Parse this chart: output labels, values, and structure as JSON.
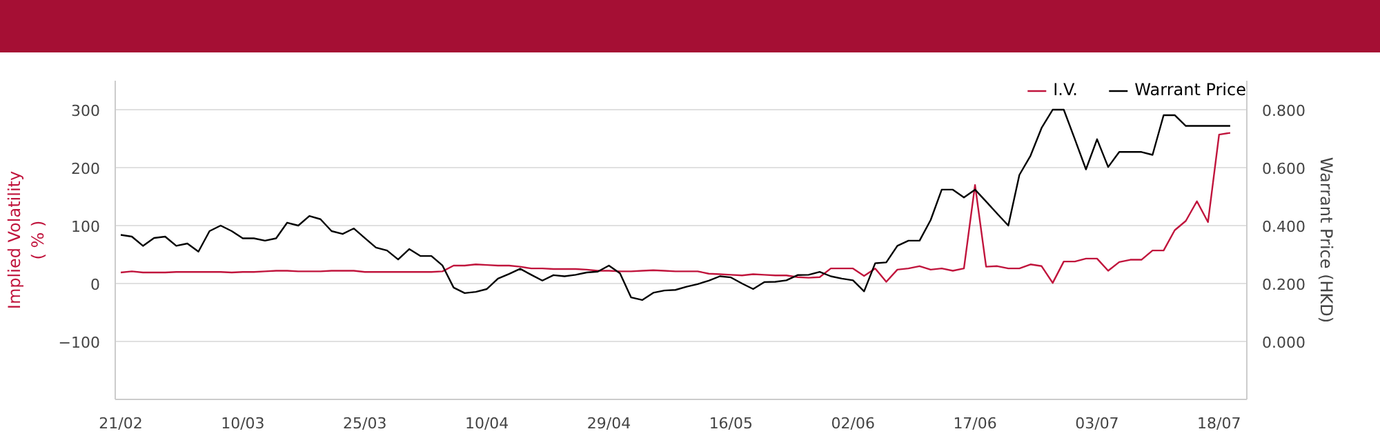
{
  "chart_data": {
    "type": "line",
    "categories": [
      "21/02",
      null,
      null,
      null,
      null,
      null,
      null,
      null,
      null,
      null,
      null,
      "10/03",
      null,
      null,
      null,
      null,
      null,
      null,
      null,
      null,
      null,
      null,
      "25/03",
      null,
      null,
      null,
      null,
      null,
      null,
      null,
      null,
      null,
      null,
      "10/04",
      null,
      null,
      null,
      null,
      null,
      null,
      null,
      null,
      null,
      null,
      "29/04",
      null,
      null,
      null,
      null,
      null,
      null,
      null,
      null,
      null,
      null,
      "16/05",
      null,
      null,
      null,
      null,
      null,
      null,
      null,
      null,
      null,
      null,
      "02/06",
      null,
      null,
      null,
      null,
      null,
      null,
      null,
      null,
      null,
      null,
      "17/06",
      null,
      null,
      null,
      null,
      null,
      null,
      null,
      null,
      null,
      null,
      "03/07",
      null,
      null,
      null,
      null,
      null,
      null,
      null,
      null,
      null,
      null,
      "18/07",
      null
    ],
    "ylabel": "Implied Volatility\n( % )",
    "y2label": "Warrant Price (HKD)",
    "ylim": [
      -200,
      350
    ],
    "yticks": [
      -100,
      0,
      100,
      200,
      300
    ],
    "y2lim": [
      -0.2,
      0.9
    ],
    "y2ticks": [
      {
        "value": 0.0,
        "label": "0.000"
      },
      {
        "value": 0.2,
        "label": "0.200"
      },
      {
        "value": 0.4,
        "label": "0.400"
      },
      {
        "value": 0.6,
        "label": "0.600"
      },
      {
        "value": 0.8,
        "label": "0.800"
      }
    ],
    "grid": "y",
    "legend": "top right",
    "marker": "none",
    "line_style": "solid",
    "series": [
      {
        "name": "I.V.",
        "color": "#c0143c",
        "values": [
          19,
          21,
          19,
          19,
          19,
          20,
          20,
          20,
          20,
          20,
          19,
          20,
          20,
          21,
          22,
          22,
          21,
          21,
          21,
          22,
          22,
          22,
          20,
          20,
          20,
          20,
          20,
          20,
          20,
          21,
          31,
          31,
          33,
          32,
          31,
          31,
          29,
          26,
          26,
          25,
          25,
          25,
          24,
          22,
          22,
          21,
          21,
          22,
          23,
          22,
          21,
          21,
          21,
          17,
          16,
          15,
          14,
          16,
          15,
          14,
          14,
          11,
          10,
          11,
          26,
          26,
          26,
          13,
          26,
          3,
          24,
          26,
          30,
          24,
          26,
          22,
          26,
          170,
          29,
          30,
          26,
          26,
          33,
          30,
          1,
          38,
          38,
          43,
          43,
          22,
          37,
          41,
          41,
          57,
          57,
          92,
          108,
          142,
          106,
          257,
          260
        ]
      },
      {
        "name": "Warrant Price",
        "color": "#000000",
        "axis": "y2",
        "values": [
          0.368,
          0.362,
          0.33,
          0.357,
          0.362,
          0.33,
          0.338,
          0.31,
          0.381,
          0.4,
          0.381,
          0.356,
          0.356,
          0.348,
          0.356,
          0.41,
          0.4,
          0.433,
          0.422,
          0.381,
          0.371,
          0.39,
          0.357,
          0.324,
          0.314,
          0.283,
          0.319,
          0.295,
          0.295,
          0.262,
          0.186,
          0.167,
          0.171,
          0.181,
          0.217,
          0.233,
          0.251,
          0.23,
          0.21,
          0.229,
          0.225,
          0.23,
          0.238,
          0.241,
          0.262,
          0.235,
          0.152,
          0.143,
          0.168,
          0.176,
          0.178,
          0.189,
          0.198,
          0.21,
          0.225,
          0.221,
          0.2,
          0.181,
          0.205,
          0.206,
          0.211,
          0.229,
          0.23,
          0.24,
          0.225,
          0.217,
          0.211,
          0.173,
          0.27,
          0.273,
          0.33,
          0.348,
          0.348,
          0.419,
          0.524,
          0.524,
          0.497,
          0.524,
          0.483,
          0.441,
          0.4,
          0.575,
          0.641,
          0.737,
          0.8,
          0.8,
          0.698,
          0.594,
          0.698,
          0.602,
          0.654,
          0.654,
          0.654,
          0.644,
          0.781,
          0.781,
          0.744,
          0.744,
          0.744,
          0.744,
          0.744
        ]
      }
    ]
  }
}
